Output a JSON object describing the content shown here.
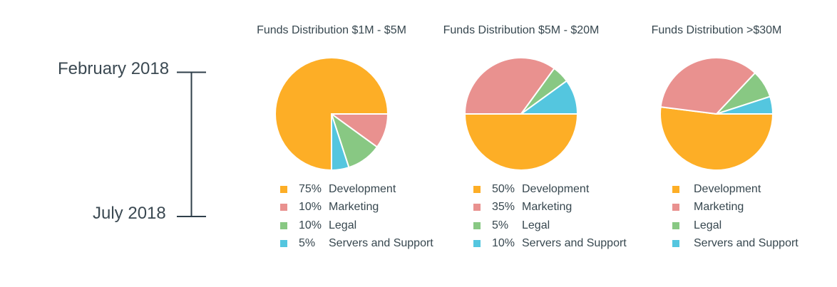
{
  "timeline": {
    "start_label": "February 2018",
    "end_label": "July 2018",
    "line_color": "#2f3f4a"
  },
  "colors": {
    "Development": "#fdae26",
    "Marketing": "#e9918f",
    "Legal": "#88c883",
    "Servers and Support": "#54c6df"
  },
  "chart_data": [
    {
      "type": "pie",
      "title": "Funds Distribution $1M - $5M",
      "categories": [
        "Development",
        "Marketing",
        "Legal",
        "Servers and Support"
      ],
      "values": [
        75,
        10,
        10,
        5
      ],
      "legend": [
        {
          "value": "75%",
          "label": "Development"
        },
        {
          "value": "10%",
          "label": "Marketing"
        },
        {
          "value": "10%",
          "label": "Legal"
        },
        {
          "value": "5%",
          "label": "Servers and Support"
        }
      ]
    },
    {
      "type": "pie",
      "title": "Funds Distribution $5M - $20M",
      "categories": [
        "Development",
        "Marketing",
        "Legal",
        "Servers and Support"
      ],
      "values": [
        50,
        35,
        5,
        10
      ],
      "legend": [
        {
          "value": "50%",
          "label": "Development"
        },
        {
          "value": "35%",
          "label": "Marketing"
        },
        {
          "value": "5%",
          "label": "Legal"
        },
        {
          "value": "10%",
          "label": "Servers and Support"
        }
      ]
    },
    {
      "type": "pie",
      "title": "Funds Distribution >$30M",
      "categories": [
        "Development",
        "Marketing",
        "Legal",
        "Servers and Support"
      ],
      "values": [
        52,
        35,
        8,
        5
      ],
      "legend": [
        {
          "value": "",
          "label": "Development"
        },
        {
          "value": "",
          "label": "Marketing"
        },
        {
          "value": "",
          "label": "Legal"
        },
        {
          "value": "",
          "label": "Servers and Support"
        }
      ]
    }
  ]
}
